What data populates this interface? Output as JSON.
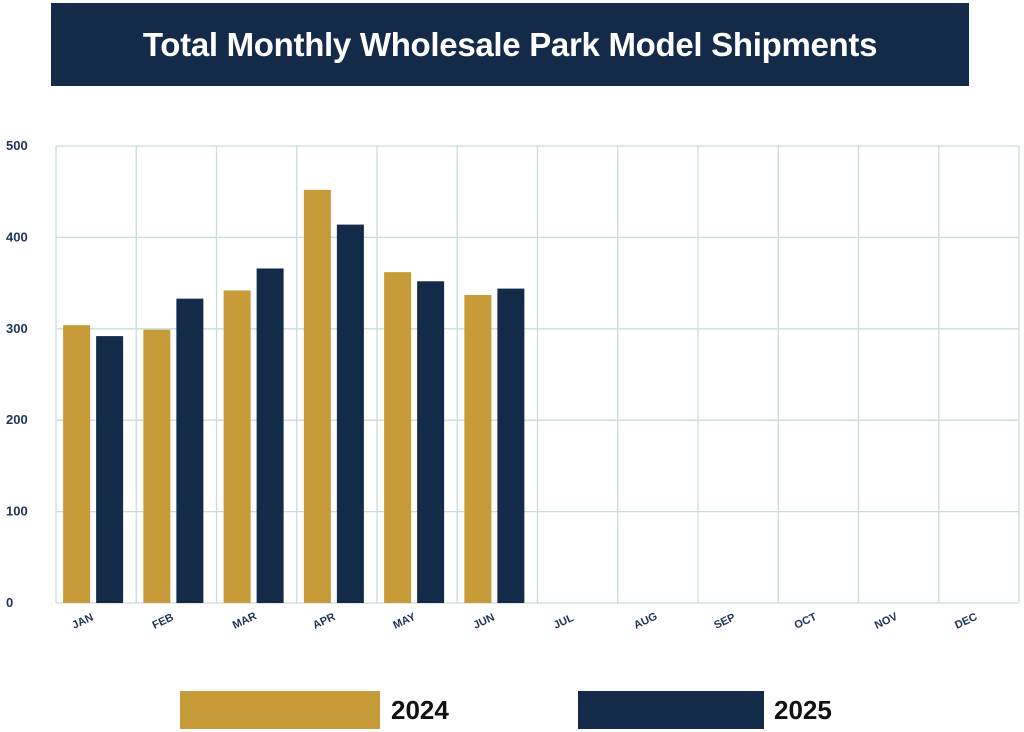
{
  "title": "Total Monthly Wholesale Park Model Shipments",
  "colors": {
    "2024": "#c79b37",
    "2025": "#132a48",
    "grid": "#c9ddd8",
    "axis_text": "#1d3557"
  },
  "chart_data": {
    "type": "bar",
    "title": "Total Monthly Wholesale Park Model Shipments",
    "categories": [
      "JAN",
      "FEB",
      "MAR",
      "APR",
      "MAY",
      "JUN",
      "JUL",
      "AUG",
      "SEP",
      "OCT",
      "NOV",
      "DEC"
    ],
    "yticks": [
      0,
      100,
      200,
      300,
      400,
      500
    ],
    "ylim": [
      0,
      500
    ],
    "grid": true,
    "legend_position": "bottom",
    "series": [
      {
        "name": "2024",
        "color": "#c79b37",
        "values": [
          304,
          299,
          342,
          452,
          362,
          337,
          null,
          null,
          null,
          null,
          null,
          null
        ]
      },
      {
        "name": "2025",
        "color": "#132a48",
        "values": [
          292,
          333,
          366,
          414,
          352,
          344,
          null,
          null,
          null,
          null,
          null,
          null
        ]
      }
    ]
  },
  "legend": [
    {
      "label": "2024",
      "color": "#c79b37"
    },
    {
      "label": "2025",
      "color": "#132a48"
    }
  ]
}
